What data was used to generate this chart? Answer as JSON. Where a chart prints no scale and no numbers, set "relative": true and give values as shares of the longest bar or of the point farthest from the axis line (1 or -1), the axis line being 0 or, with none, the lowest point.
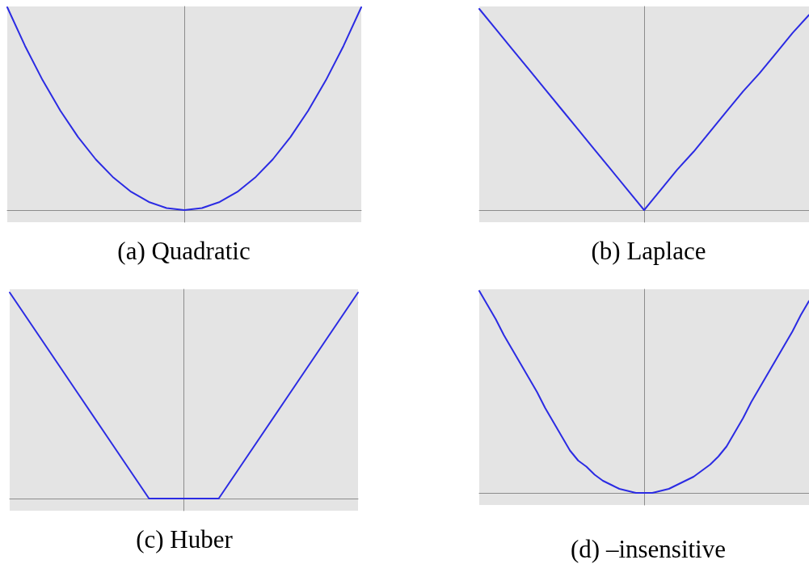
{
  "chart_data": [
    {
      "type": "line",
      "title": "(a) Quadratic",
      "relative": true,
      "tick_labels": false,
      "marker": "none",
      "color": "#2b2be3",
      "categories": [
        null,
        null,
        null,
        null,
        null,
        null,
        null,
        null,
        null,
        null,
        null,
        null,
        null,
        null,
        null,
        null,
        null,
        null,
        null,
        null,
        null
      ],
      "values": [
        1,
        0.81,
        0.64,
        0.49,
        0.36,
        0.25,
        0.16,
        0.09,
        0.04,
        0.01,
        0,
        0.01,
        0.04,
        0.09,
        0.16,
        0.25,
        0.36,
        0.49,
        0.64,
        0.81,
        1
      ]
    },
    {
      "type": "line",
      "title": "(b) Laplace",
      "relative": true,
      "tick_labels": false,
      "marker": "none",
      "color": "#2b2be3",
      "categories": [
        null,
        null,
        null,
        null,
        null,
        null,
        null,
        null,
        null,
        null,
        null,
        null,
        null,
        null,
        null,
        null,
        null,
        null,
        null,
        null,
        null
      ],
      "values": [
        1,
        0.9,
        0.8,
        0.7,
        0.6,
        0.5,
        0.4,
        0.3,
        0.2,
        0.1,
        0,
        0.1,
        0.2,
        0.29,
        0.39,
        0.49,
        0.59,
        0.68,
        0.78,
        0.88,
        0.97
      ]
    },
    {
      "type": "line",
      "title": "(c) Huber",
      "relative": true,
      "tick_labels": false,
      "marker": "none",
      "color": "#2b2be3",
      "categories": [
        null,
        null,
        null,
        null,
        null,
        null,
        null,
        null,
        null,
        null,
        null
      ],
      "values": [
        1,
        0.75,
        0.5,
        0.25,
        0,
        0,
        0,
        0.25,
        0.5,
        0.75,
        1
      ]
    },
    {
      "type": "line",
      "title": "(d) –insensitive",
      "relative": true,
      "tick_labels": false,
      "marker": "none",
      "color": "#2b2be3",
      "categories": [
        null,
        null,
        null,
        null,
        null,
        null,
        null,
        null,
        null,
        null,
        null,
        null,
        null,
        null,
        null,
        null,
        null,
        null,
        null,
        null,
        null,
        null,
        null,
        null,
        null,
        null,
        null,
        null,
        null,
        null,
        null,
        null,
        null,
        null,
        null,
        null,
        null,
        null,
        null,
        null,
        null
      ],
      "values": [
        1,
        0.93,
        0.86,
        0.78,
        0.71,
        0.64,
        0.57,
        0.5,
        0.42,
        0.35,
        0.28,
        0.21,
        0.16,
        0.13,
        0.09,
        0.06,
        0.04,
        0.02,
        0.01,
        0,
        0,
        0,
        0.01,
        0.02,
        0.04,
        0.06,
        0.08,
        0.11,
        0.14,
        0.18,
        0.23,
        0.3,
        0.37,
        0.45,
        0.52,
        0.59,
        0.66,
        0.73,
        0.8,
        0.88,
        0.95
      ]
    }
  ]
}
